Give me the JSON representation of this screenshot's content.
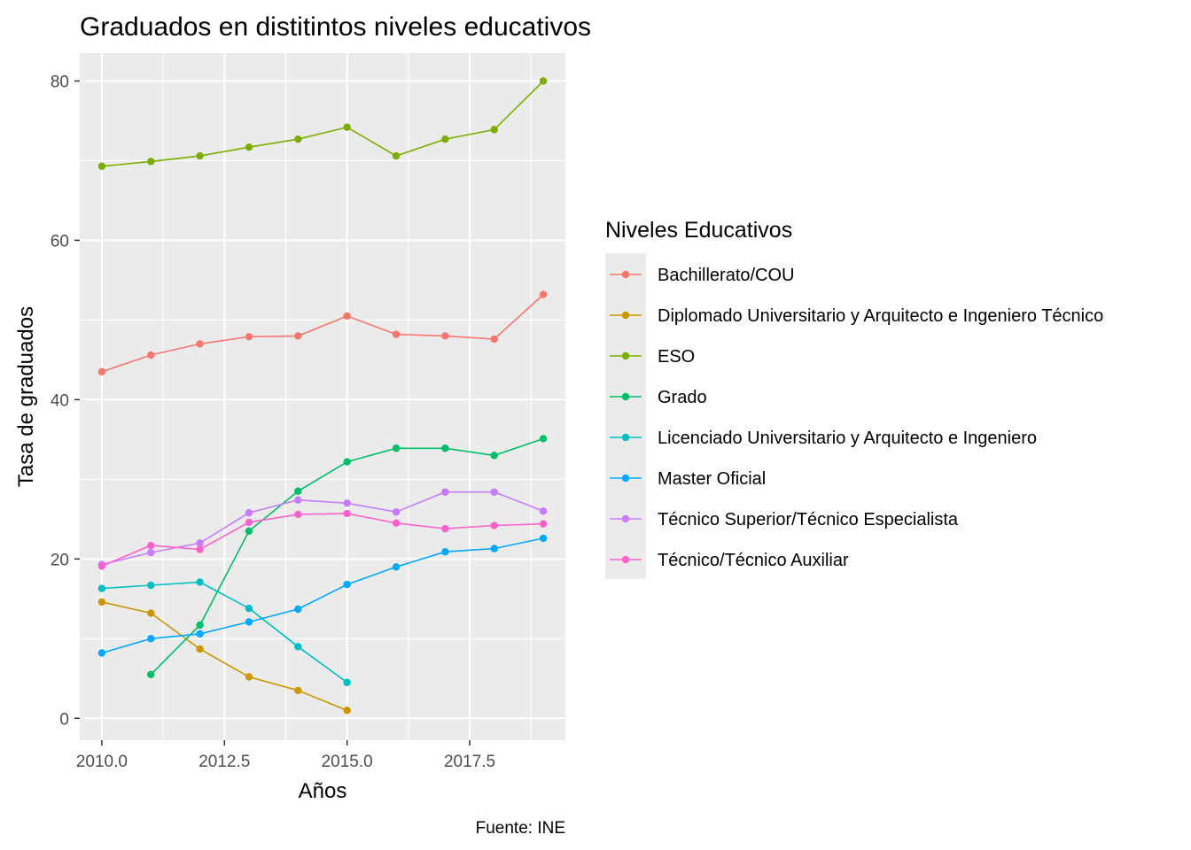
{
  "chart_data": {
    "type": "line",
    "title": "Graduados en distitintos niveles educativos",
    "xlabel": "Años",
    "ylabel": "Tasa de graduados",
    "caption": "Fuente: INE",
    "xlim": [
      2009.55,
      2019.45
    ],
    "ylim": [
      -2.75,
      83.5
    ],
    "x_ticks": [
      2010.0,
      2012.5,
      2015.0,
      2017.5
    ],
    "x_tick_labels": [
      "2010.0",
      "2012.5",
      "2015.0",
      "2017.5"
    ],
    "y_ticks": [
      0,
      20,
      40,
      60,
      80
    ],
    "y_tick_labels": [
      "0",
      "20",
      "40",
      "60",
      "80"
    ],
    "grid": true,
    "panel_background": "#ebebeb",
    "legend_title": "Niveles Educativos",
    "legend_position": "right",
    "series": [
      {
        "name": "Bachillerato/COU",
        "color": "#F8766D",
        "x": [
          2010,
          2011,
          2012,
          2013,
          2014,
          2015,
          2016,
          2017,
          2018,
          2019
        ],
        "values": [
          43.5,
          45.6,
          47.0,
          47.9,
          48.0,
          50.5,
          48.2,
          48.0,
          47.6,
          53.2
        ]
      },
      {
        "name": "Diplomado Universitario y Arquitecto e Ingeniero Técnico",
        "color": "#CD9600",
        "x": [
          2010,
          2011,
          2012,
          2013,
          2014,
          2015
        ],
        "values": [
          14.6,
          13.2,
          8.7,
          5.2,
          3.5,
          1.0
        ]
      },
      {
        "name": "ESO",
        "color": "#7CAE00",
        "x": [
          2010,
          2011,
          2012,
          2013,
          2014,
          2015,
          2016,
          2017,
          2018,
          2019
        ],
        "values": [
          69.3,
          69.9,
          70.6,
          71.7,
          72.7,
          74.2,
          70.6,
          72.7,
          73.9,
          80.0
        ]
      },
      {
        "name": "Grado",
        "color": "#00BE67",
        "x": [
          2011,
          2012,
          2013,
          2014,
          2015,
          2016,
          2017,
          2018,
          2019
        ],
        "values": [
          5.5,
          11.7,
          23.5,
          28.5,
          32.2,
          33.9,
          33.9,
          33.0,
          35.1
        ]
      },
      {
        "name": "Licenciado Universitario y Arquitecto e Ingeniero",
        "color": "#00BFC4",
        "x": [
          2010,
          2011,
          2012,
          2013,
          2014,
          2015
        ],
        "values": [
          16.3,
          16.7,
          17.1,
          13.8,
          9.0,
          4.5
        ]
      },
      {
        "name": "Master Oficial",
        "color": "#00A9FF",
        "x": [
          2010,
          2011,
          2012,
          2013,
          2014,
          2015,
          2016,
          2017,
          2018,
          2019
        ],
        "values": [
          8.2,
          10.0,
          10.6,
          12.1,
          13.7,
          16.8,
          19.0,
          20.9,
          21.3,
          22.6
        ]
      },
      {
        "name": "Técnico Superior/Técnico Especialista",
        "color": "#C77CFF",
        "x": [
          2010,
          2011,
          2012,
          2013,
          2014,
          2015,
          2016,
          2017,
          2018,
          2019
        ],
        "values": [
          19.3,
          20.8,
          22.0,
          25.8,
          27.4,
          27.0,
          25.9,
          28.4,
          28.4,
          26.0
        ]
      },
      {
        "name": "Técnico/Técnico Auxiliar",
        "color": "#FF61CC",
        "x": [
          2010,
          2011,
          2012,
          2013,
          2014,
          2015,
          2016,
          2017,
          2018,
          2019
        ],
        "values": [
          19.1,
          21.7,
          21.2,
          24.6,
          25.6,
          25.7,
          24.5,
          23.8,
          24.2,
          24.4
        ]
      }
    ]
  }
}
